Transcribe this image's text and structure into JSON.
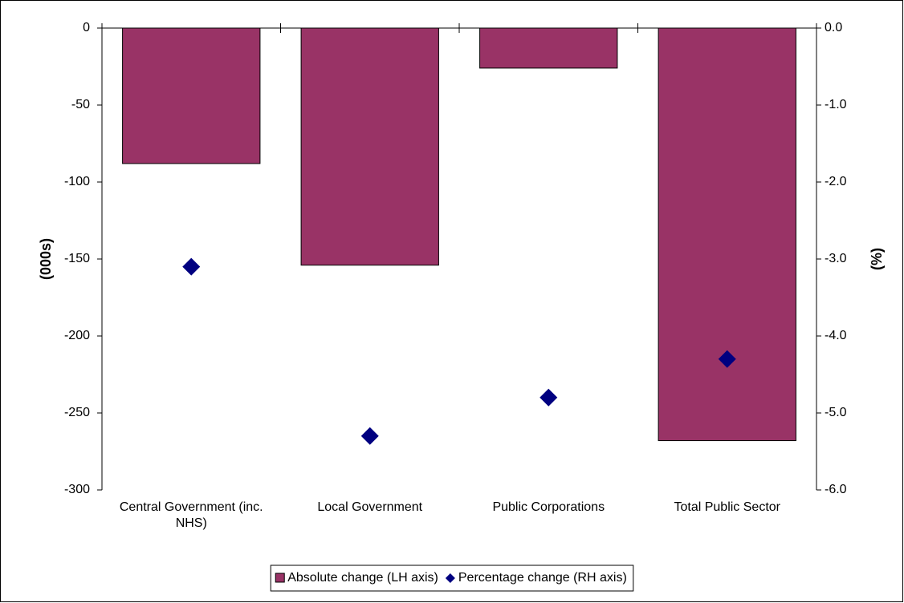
{
  "chart_data": {
    "type": "bar",
    "categories": [
      "Central Government (inc. NHS)",
      "Local Government",
      "Public Corporations",
      "Total Public Sector"
    ],
    "series": [
      {
        "name": "Absolute change (LH axis)",
        "type": "bar",
        "color": "#993366",
        "values": [
          -88,
          -154,
          -26,
          -268
        ]
      },
      {
        "name": "Percentage change (RH axis)",
        "type": "scatter",
        "axis": "y2",
        "color": "#000080",
        "values": [
          -3.1,
          -5.3,
          -4.8,
          -4.3
        ]
      }
    ],
    "ylabel": "(000s)",
    "y2label": "(%)",
    "ylim": [
      -300,
      0
    ],
    "yticks": [
      0,
      -50,
      -100,
      -150,
      -200,
      -250,
      -300
    ],
    "y2lim": [
      -6,
      0
    ],
    "y2ticks": [
      {
        "value": 0,
        "label": "0.0"
      },
      {
        "value": -1,
        "label": "-1.0"
      },
      {
        "value": -2,
        "label": "-2.0"
      },
      {
        "value": -3,
        "label": "-3.0"
      },
      {
        "value": -4,
        "label": "-4.0"
      },
      {
        "value": -5,
        "label": "-5.0"
      },
      {
        "value": -6,
        "label": "-6.0"
      }
    ],
    "legend": "bottom",
    "grid": false
  }
}
